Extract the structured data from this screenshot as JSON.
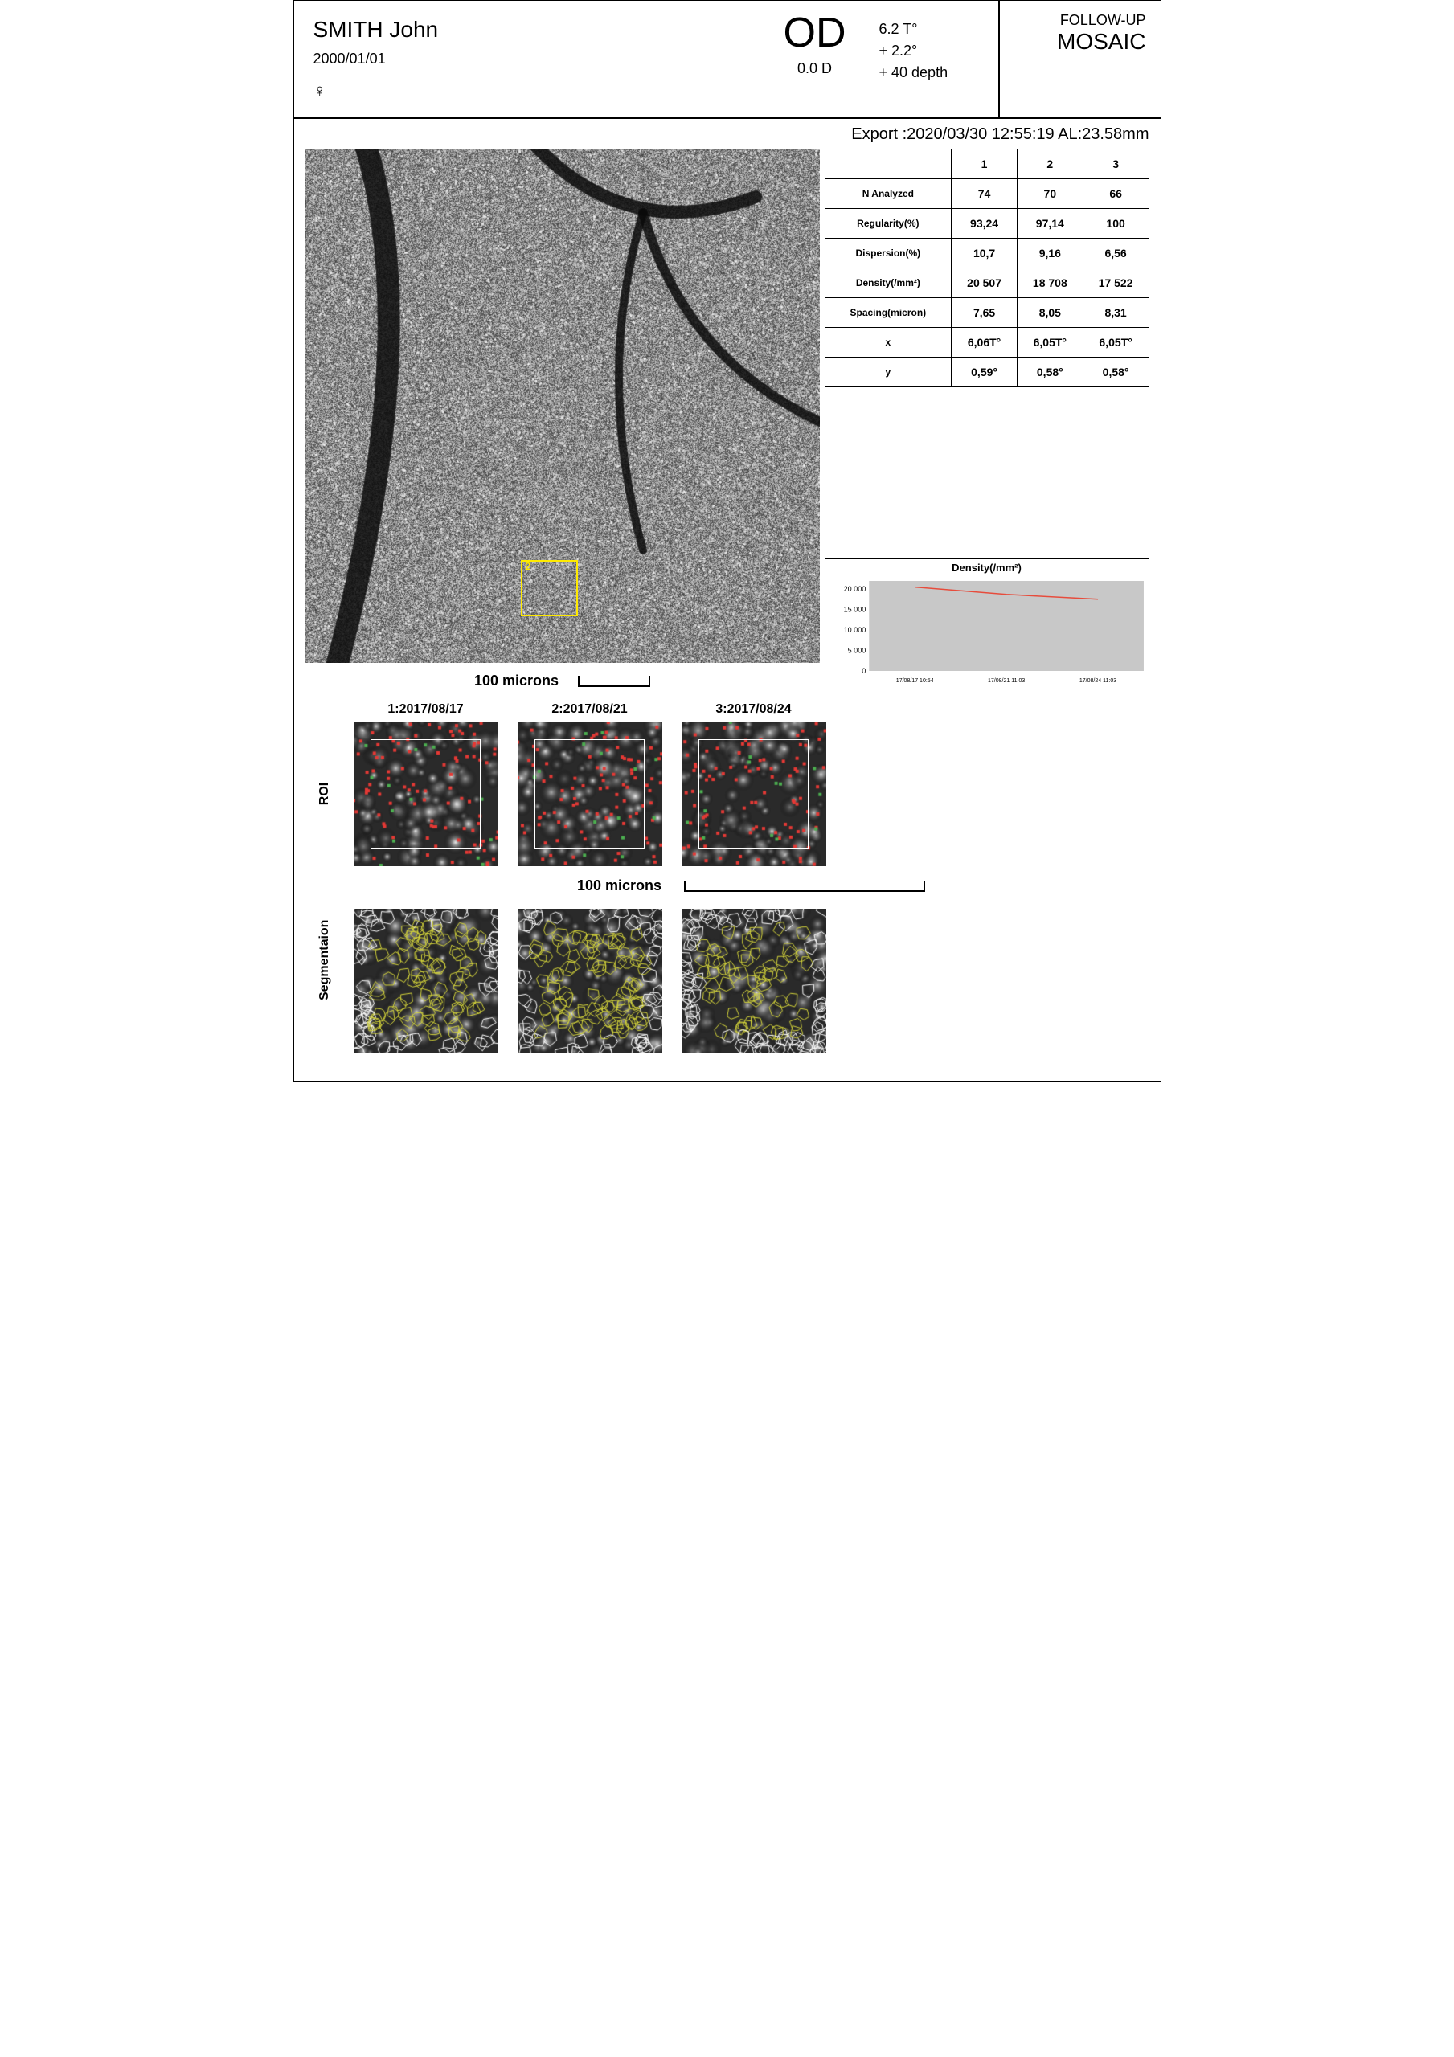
{
  "patient": {
    "name": "SMITH John",
    "dob": "2000/01/01",
    "gender": "♀"
  },
  "eye": {
    "label": "OD",
    "diopter": "0.0 D"
  },
  "coords": {
    "l1": "   6.2 T°",
    "l2": "+  2.2°",
    "l3": "+  40 depth"
  },
  "mode": {
    "sub": "FOLLOW-UP",
    "main": "MOSAIC"
  },
  "export_line": "Export :2020/03/30 12:55:19   AL:23.58mm",
  "table": {
    "headers": [
      "",
      "1",
      "2",
      "3"
    ],
    "rows": [
      [
        "N Analyzed",
        "74",
        "70",
        "66"
      ],
      [
        "Regularity(%)",
        "93,24",
        "97,14",
        "100"
      ],
      [
        "Dispersion(%)",
        "10,7",
        "9,16",
        "6,56"
      ],
      [
        "Density(/mm²)",
        "20 507",
        "18 708",
        "17 522"
      ],
      [
        "Spacing(micron)",
        "7,65",
        "8,05",
        "8,31"
      ],
      [
        "x",
        "6,06T°",
        "6,05T°",
        "6,05T°"
      ],
      [
        "y",
        "0,59°",
        "0,58°",
        "0,58°"
      ]
    ]
  },
  "main_scale": "100 microns",
  "chart": {
    "title": "Density(/mm²)",
    "y_ticks": [
      0,
      5000,
      10000,
      15000,
      20000
    ],
    "y_labels": [
      "0",
      "5 000",
      "10 000",
      "15 000",
      "20 000"
    ],
    "x_labels": [
      "17/08/17 10:54",
      "17/08/21 11:03",
      "17/08/24 11:03"
    ],
    "series": [
      20507,
      18708,
      17522
    ],
    "line_color": "#e74c3c",
    "bg": "#c8c8c8"
  },
  "thumbs": {
    "dates": [
      "1:2017/08/17",
      "2:2017/08/21",
      "3:2017/08/24"
    ],
    "scale": "100 microns",
    "row_labels": [
      "ROI",
      "Segmentaion"
    ]
  },
  "roi_on_mosaic": {
    "left_pct": 42,
    "top_pct": 80,
    "size_pct": 11,
    "label": "2"
  },
  "vis": {
    "mosaic_seed": 7,
    "roi_seed": [
      11,
      12,
      13
    ],
    "seg_seed": [
      21,
      22,
      23
    ],
    "marker_red": "#e53935",
    "marker_green": "#4caf50",
    "voronoi_outer": "#ffffff",
    "voronoi_inner": "#d4d43a",
    "thumb_inner_box": {
      "left_pct": 12,
      "top_pct": 12,
      "size_pct": 76
    }
  }
}
